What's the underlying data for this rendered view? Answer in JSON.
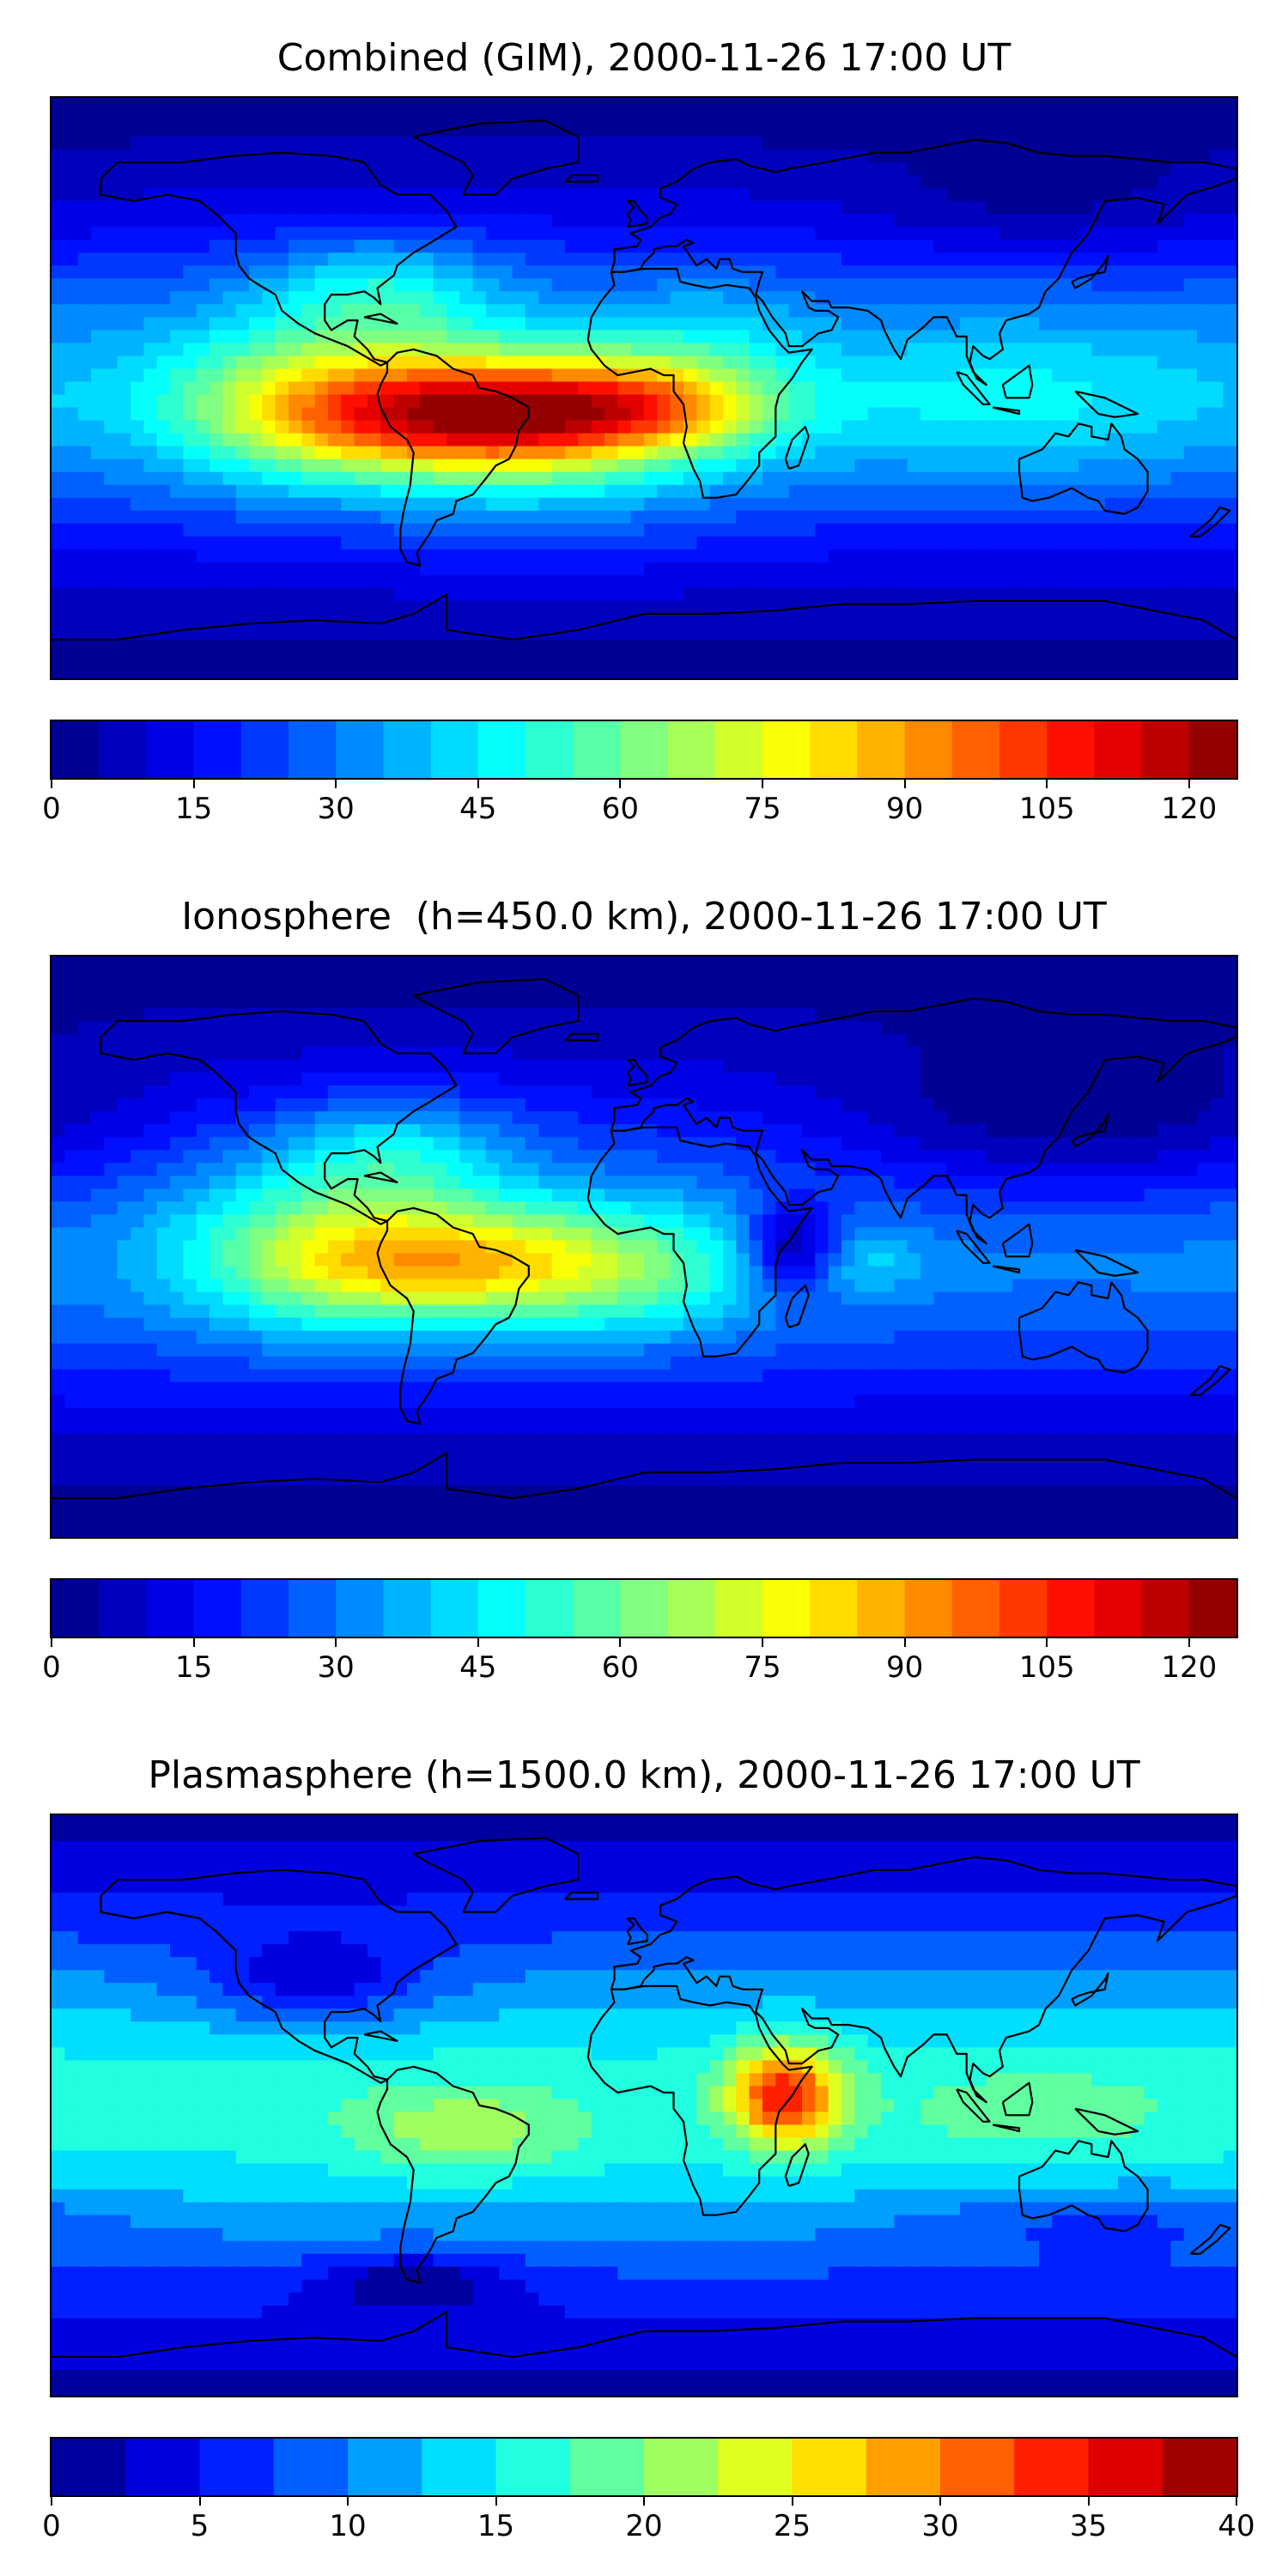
{
  "chart_data": [
    {
      "type": "heatmap",
      "title": "Combined (GIM), 2000-11-26 17:00 UT",
      "colormap": "jet",
      "colorbar": {
        "min": 0,
        "max": 125,
        "step": 5,
        "ticks": [
          0,
          15,
          30,
          45,
          60,
          75,
          90,
          105,
          120
        ]
      },
      "extent": {
        "lon": [
          -180,
          180
        ],
        "lat": [
          -90,
          90
        ]
      },
      "blobs": [
        {
          "lon": -50,
          "lat": -8,
          "value": 70,
          "slon": 40,
          "slat": 12
        },
        {
          "lon": 5,
          "lat": -5,
          "value": 30,
          "slon": 25,
          "slat": 10
        },
        {
          "lon": -105,
          "lat": -5,
          "value": 28,
          "slon": 30,
          "slat": 18
        },
        {
          "lon": -80,
          "lat": 30,
          "value": 22,
          "slon": 25,
          "slat": 12
        },
        {
          "lon": -30,
          "lat": -15,
          "value": 20,
          "slon": 40,
          "slat": 22
        },
        {
          "lon": 20,
          "lat": 20,
          "value": 8,
          "slon": 20,
          "slat": 12
        },
        {
          "lon": 110,
          "lat": -5,
          "value": 12,
          "slon": 45,
          "slat": 18
        },
        {
          "lon": 120,
          "lat": 55,
          "value": -8,
          "slon": 40,
          "slat": 12
        }
      ],
      "base": 35,
      "latSigma": 55
    },
    {
      "type": "heatmap",
      "title": "Ionosphere  (h=450.0 km), 2000-11-26 17:00 UT",
      "colormap": "jet",
      "colorbar": {
        "min": 0,
        "max": 125,
        "step": 5,
        "ticks": [
          0,
          15,
          30,
          45,
          60,
          75,
          90,
          105,
          120
        ]
      },
      "extent": {
        "lon": [
          -180,
          180
        ],
        "lat": [
          -90,
          90
        ]
      },
      "blobs": [
        {
          "lon": -55,
          "lat": -5,
          "value": 48,
          "slon": 40,
          "slat": 13
        },
        {
          "lon": -100,
          "lat": 0,
          "value": 22,
          "slon": 30,
          "slat": 20
        },
        {
          "lon": -75,
          "lat": 30,
          "value": 20,
          "slon": 25,
          "slat": 12
        },
        {
          "lon": 0,
          "lat": -10,
          "value": 15,
          "slon": 30,
          "slat": 15
        },
        {
          "lon": 45,
          "lat": 0,
          "value": -30,
          "slon": 10,
          "slat": 10
        },
        {
          "lon": 130,
          "lat": 35,
          "value": -18,
          "slon": 55,
          "slat": 18
        },
        {
          "lon": 70,
          "lat": -5,
          "value": 10,
          "slon": 12,
          "slat": 6
        }
      ],
      "base": 32,
      "latSigma": 55
    },
    {
      "type": "heatmap",
      "title": "Plasmasphere (h=1500.0 km), 2000-11-26 17:00 UT",
      "colormap": "jet",
      "colorbar": {
        "min": 0,
        "max": 40,
        "step": 2.5,
        "ticks": [
          0,
          5,
          10,
          15,
          20,
          25,
          30,
          35,
          40
        ]
      },
      "extent": {
        "lon": [
          -180,
          180
        ],
        "lat": [
          -90,
          90
        ]
      },
      "blobs": [
        {
          "lon": 43,
          "lat": 3,
          "value": 19,
          "slon": 12,
          "slat": 11
        },
        {
          "lon": -55,
          "lat": -8,
          "value": 6,
          "slon": 25,
          "slat": 10
        },
        {
          "lon": -100,
          "lat": 38,
          "value": -7,
          "slon": 25,
          "slat": 10
        },
        {
          "lon": -70,
          "lat": -55,
          "value": -7,
          "slon": 20,
          "slat": 6
        },
        {
          "lon": 120,
          "lat": -2,
          "value": 3,
          "slon": 30,
          "slat": 12
        },
        {
          "lon": 140,
          "lat": -35,
          "value": -4,
          "slon": 40,
          "slat": 8
        }
      ],
      "base": 16,
      "latSigma": 60
    }
  ]
}
